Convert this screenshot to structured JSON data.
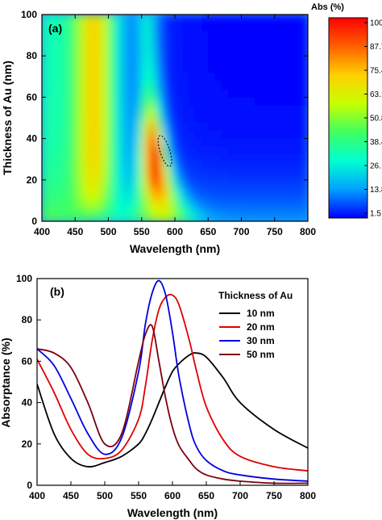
{
  "chart_data": [
    {
      "type": "heatmap",
      "panel_label": "(a)",
      "xlabel": "Wavelength (nm)",
      "ylabel": "Thickness of Au (nm)",
      "xlim": [
        400,
        800
      ],
      "ylim": [
        0,
        100
      ],
      "xticks": [
        "400",
        "450",
        "500",
        "550",
        "600",
        "650",
        "700",
        "750",
        "800"
      ],
      "yticks": [
        "0",
        "20",
        "40",
        "60",
        "80",
        "100"
      ],
      "colorbar": {
        "title": "Abs (%)",
        "ticks": [
          "100.0",
          "87.7",
          "75.4",
          "63.1",
          "50.8",
          "38.4",
          "26.1",
          "13.8",
          "1.5"
        ],
        "range": [
          1.5,
          100.0
        ],
        "colors": [
          "#0000ff",
          "#00a0ff",
          "#00ffd0",
          "#40ff60",
          "#c8ff00",
          "#ffd000",
          "#ff6000",
          "#ff0000"
        ]
      },
      "peak": {
        "wavelength": 585,
        "thickness": 30,
        "value": 100
      }
    },
    {
      "type": "line",
      "panel_label": "(b)",
      "xlabel": "Wavelength (nm)",
      "ylabel": "Absorptance (%)",
      "xlim": [
        400,
        800
      ],
      "ylim": [
        0,
        100
      ],
      "xticks": [
        "400",
        "450",
        "500",
        "550",
        "600",
        "650",
        "700",
        "750",
        "800"
      ],
      "yticks": [
        "0",
        "20",
        "40",
        "60",
        "80",
        "100"
      ],
      "legend_title": "Thickness of Au",
      "legend_position": "top-right",
      "x": [
        400,
        425,
        450,
        475,
        500,
        525,
        550,
        560,
        570,
        580,
        590,
        600,
        610,
        625,
        635,
        650,
        675,
        700,
        750,
        800
      ],
      "series": [
        {
          "name": "10 nm",
          "color": "#000000",
          "values": [
            49,
            25,
            13,
            9,
            11,
            14,
            20,
            25,
            32,
            40,
            48,
            55,
            59,
            63,
            64,
            62,
            52,
            40,
            27,
            18
          ]
        },
        {
          "name": "20 nm",
          "color": "#e00000",
          "values": [
            61,
            45,
            27,
            15,
            13,
            17,
            32,
            48,
            70,
            85,
            91,
            92,
            87,
            70,
            56,
            38,
            22,
            14,
            9,
            7
          ]
        },
        {
          "name": "30 nm",
          "color": "#0000e0",
          "values": [
            66,
            58,
            42,
            25,
            15,
            23,
            55,
            78,
            93,
            99,
            92,
            74,
            52,
            29,
            19,
            12,
            7,
            5,
            3,
            2
          ]
        },
        {
          "name": "50 nm",
          "color": "#7a0010",
          "values": [
            66,
            64,
            57,
            40,
            20,
            25,
            60,
            73,
            77,
            60,
            42,
            28,
            19,
            12,
            8,
            5,
            3,
            2,
            1,
            1
          ]
        }
      ]
    }
  ]
}
